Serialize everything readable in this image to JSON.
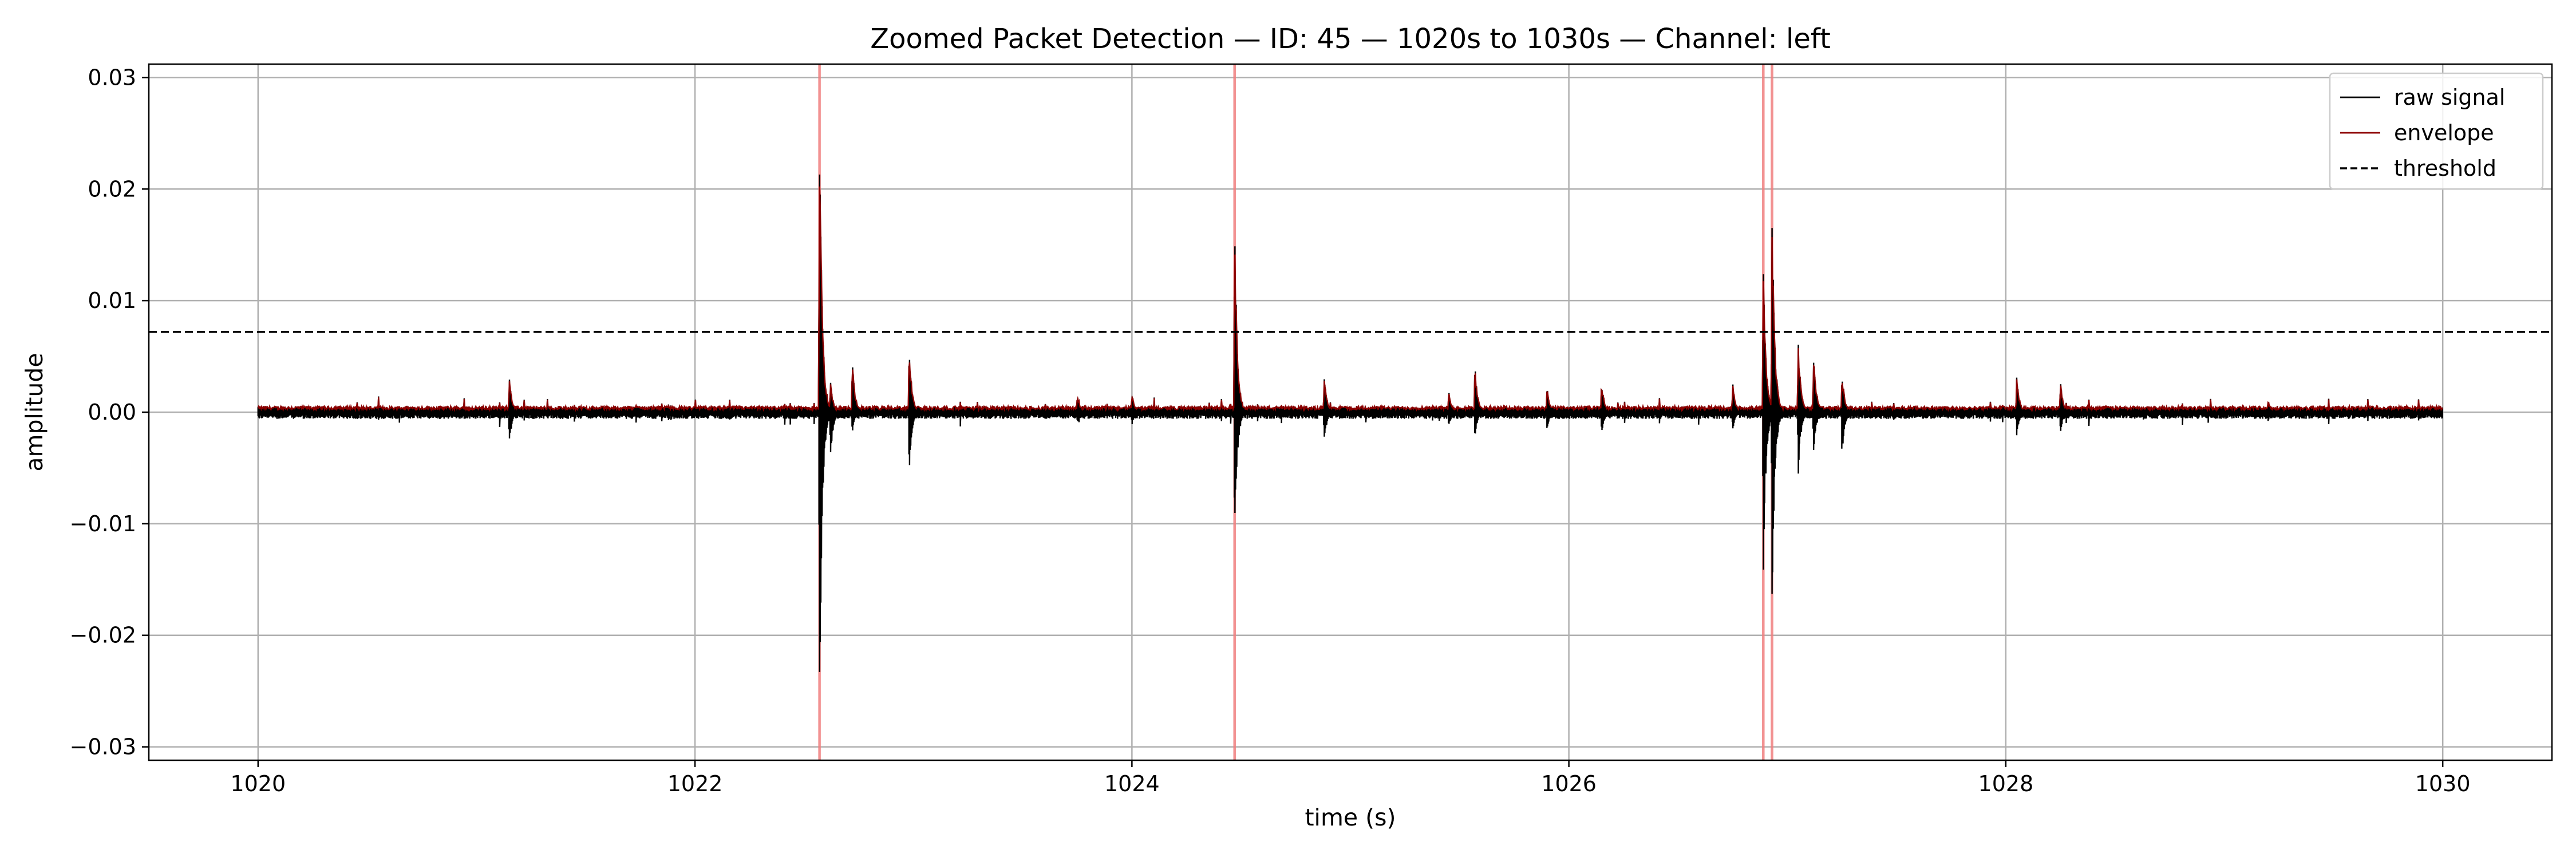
{
  "chart_data": {
    "type": "line",
    "title": "Zoomed Packet Detection — ID: 45 — 1020s to 1030s — Channel: left",
    "xlabel": "time (s)",
    "ylabel": "amplitude",
    "xlim": [
      1019.5,
      1030.5
    ],
    "ylim": [
      -0.0312,
      0.0312
    ],
    "x_ticks": [
      1020,
      1022,
      1024,
      1026,
      1028,
      1030
    ],
    "x_tick_labels": [
      "1020",
      "1022",
      "1024",
      "1026",
      "1028",
      "1030"
    ],
    "y_ticks": [
      0.03,
      0.02,
      0.01,
      0.0,
      -0.01,
      -0.02,
      -0.03
    ],
    "y_tick_labels": [
      "0.03",
      "0.02",
      "0.01",
      "0.00",
      "−0.01",
      "−0.02",
      "−0.03"
    ],
    "grid": true,
    "legend_position": "top-right",
    "threshold": 0.0072,
    "detections": [
      1022.57,
      1024.47,
      1026.89,
      1026.93
    ],
    "noise_floor": 0.0004,
    "events": [
      {
        "t": 1021.15,
        "pos": 0.0033,
        "neg": -0.0033
      },
      {
        "t": 1022.57,
        "pos": 0.0285,
        "neg": -0.0282
      },
      {
        "t": 1022.62,
        "pos": 0.003,
        "neg": -0.0045
      },
      {
        "t": 1022.72,
        "pos": 0.0052,
        "neg": -0.002
      },
      {
        "t": 1022.98,
        "pos": 0.0067,
        "neg": -0.0057
      },
      {
        "t": 1023.75,
        "pos": 0.0016,
        "neg": -0.001
      },
      {
        "t": 1024.0,
        "pos": 0.0018,
        "neg": -0.0012
      },
      {
        "t": 1024.47,
        "pos": 0.0172,
        "neg": -0.012
      },
      {
        "t": 1024.88,
        "pos": 0.0035,
        "neg": -0.003
      },
      {
        "t": 1025.45,
        "pos": 0.002,
        "neg": -0.0015
      },
      {
        "t": 1025.57,
        "pos": 0.0046,
        "neg": -0.0025
      },
      {
        "t": 1025.9,
        "pos": 0.0025,
        "neg": -0.0018
      },
      {
        "t": 1026.15,
        "pos": 0.003,
        "neg": -0.0022
      },
      {
        "t": 1026.75,
        "pos": 0.0028,
        "neg": -0.0018
      },
      {
        "t": 1026.89,
        "pos": 0.0152,
        "neg": -0.0152
      },
      {
        "t": 1026.93,
        "pos": 0.019,
        "neg": -0.0188
      },
      {
        "t": 1027.05,
        "pos": 0.0068,
        "neg": -0.006
      },
      {
        "t": 1027.12,
        "pos": 0.006,
        "neg": -0.004
      },
      {
        "t": 1027.25,
        "pos": 0.004,
        "neg": -0.0042
      },
      {
        "t": 1028.05,
        "pos": 0.0035,
        "neg": -0.0025
      },
      {
        "t": 1028.25,
        "pos": 0.003,
        "neg": -0.002
      },
      {
        "t": 1029.2,
        "pos": 0.0012,
        "neg": -0.001
      }
    ],
    "series": [
      {
        "name": "raw signal",
        "color": "#000000",
        "style": "solid"
      },
      {
        "name": "envelope",
        "color": "#8b0000",
        "style": "solid"
      },
      {
        "name": "threshold",
        "color": "#000000",
        "style": "dashed"
      }
    ],
    "colors": {
      "detection_marker": "#f08080",
      "grid": "#b0b0b0",
      "axes": "#000000"
    }
  }
}
